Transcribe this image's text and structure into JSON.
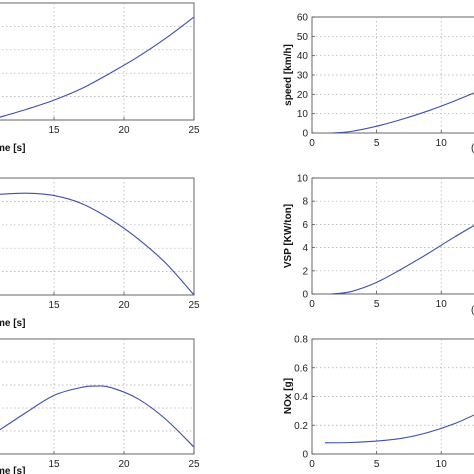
{
  "chart_data": [
    {
      "type": "line",
      "panel": "left-top",
      "xlabel": "me [s]",
      "ylabel": "",
      "xlim": [
        11,
        25
      ],
      "ylim": [
        0,
        1
      ],
      "xticks": [
        "15",
        "20",
        "25"
      ],
      "yticks": [],
      "series": [
        {
          "x": [
            11,
            13,
            15,
            17,
            19,
            21,
            23,
            25
          ],
          "y": [
            0.02,
            0.09,
            0.17,
            0.27,
            0.4,
            0.54,
            0.7,
            0.88
          ]
        }
      ],
      "grid": true
    },
    {
      "type": "line",
      "panel": "right-top",
      "xlabel": "",
      "ylabel": "speed [km/h]",
      "xlim": [
        0,
        13
      ],
      "ylim": [
        0,
        60
      ],
      "xticks": [
        "0",
        "5",
        "10"
      ],
      "yticks": [
        "0",
        "10",
        "20",
        "30",
        "40",
        "50",
        "60"
      ],
      "series": [
        {
          "x": [
            1.5,
            3,
            5,
            7,
            9,
            11,
            13
          ],
          "y": [
            0,
            0.8,
            3.5,
            7.2,
            11.5,
            16.5,
            22
          ]
        }
      ],
      "grid": true
    },
    {
      "type": "line",
      "panel": "left-middle",
      "xlabel": "me [s]",
      "ylabel": "",
      "xlim": [
        11,
        25
      ],
      "ylim": [
        0,
        1
      ],
      "xticks": [
        "15",
        "20",
        "25"
      ],
      "yticks": [],
      "series": [
        {
          "x": [
            11,
            13,
            15,
            17,
            19,
            21,
            23,
            25
          ],
          "y": [
            0.86,
            0.87,
            0.85,
            0.78,
            0.65,
            0.48,
            0.27,
            0.0
          ]
        }
      ],
      "grid": true
    },
    {
      "type": "line",
      "panel": "right-middle",
      "xlabel": "",
      "ylabel": "VSP [KW/ton]",
      "xlim": [
        0,
        13
      ],
      "ylim": [
        0,
        10
      ],
      "xticks": [
        "0",
        "5",
        "10"
      ],
      "yticks": [
        "0",
        "2",
        "4",
        "6",
        "8",
        "10"
      ],
      "series": [
        {
          "x": [
            1.5,
            3,
            5,
            7,
            9,
            11,
            13
          ],
          "y": [
            0,
            0.2,
            1.0,
            2.2,
            3.5,
            4.9,
            6.2
          ]
        }
      ],
      "grid": true
    },
    {
      "type": "line",
      "panel": "left-bottom",
      "xlabel": "me [s]",
      "ylabel": "",
      "xlim": [
        11,
        25
      ],
      "ylim": [
        0,
        1
      ],
      "xticks": [
        "15",
        "20",
        "25"
      ],
      "yticks": [],
      "series": [
        {
          "x": [
            11,
            13,
            15,
            17,
            18,
            19,
            21,
            23,
            25
          ],
          "y": [
            0.2,
            0.36,
            0.51,
            0.58,
            0.59,
            0.58,
            0.48,
            0.3,
            0.06
          ]
        }
      ],
      "grid": true
    },
    {
      "type": "line",
      "panel": "right-bottom",
      "xlabel": "",
      "ylabel": "NOx [g]",
      "xlim": [
        0,
        13
      ],
      "ylim": [
        0,
        0.8
      ],
      "xticks": [
        "0",
        "5",
        "10"
      ],
      "yticks": [
        "0",
        "0.2",
        "0.4",
        "0.6",
        "0.8"
      ],
      "series": [
        {
          "x": [
            1,
            3,
            5,
            7,
            9,
            11,
            13
          ],
          "y": [
            0.078,
            0.08,
            0.09,
            0.11,
            0.15,
            0.21,
            0.29
          ]
        }
      ],
      "grid": true
    }
  ]
}
